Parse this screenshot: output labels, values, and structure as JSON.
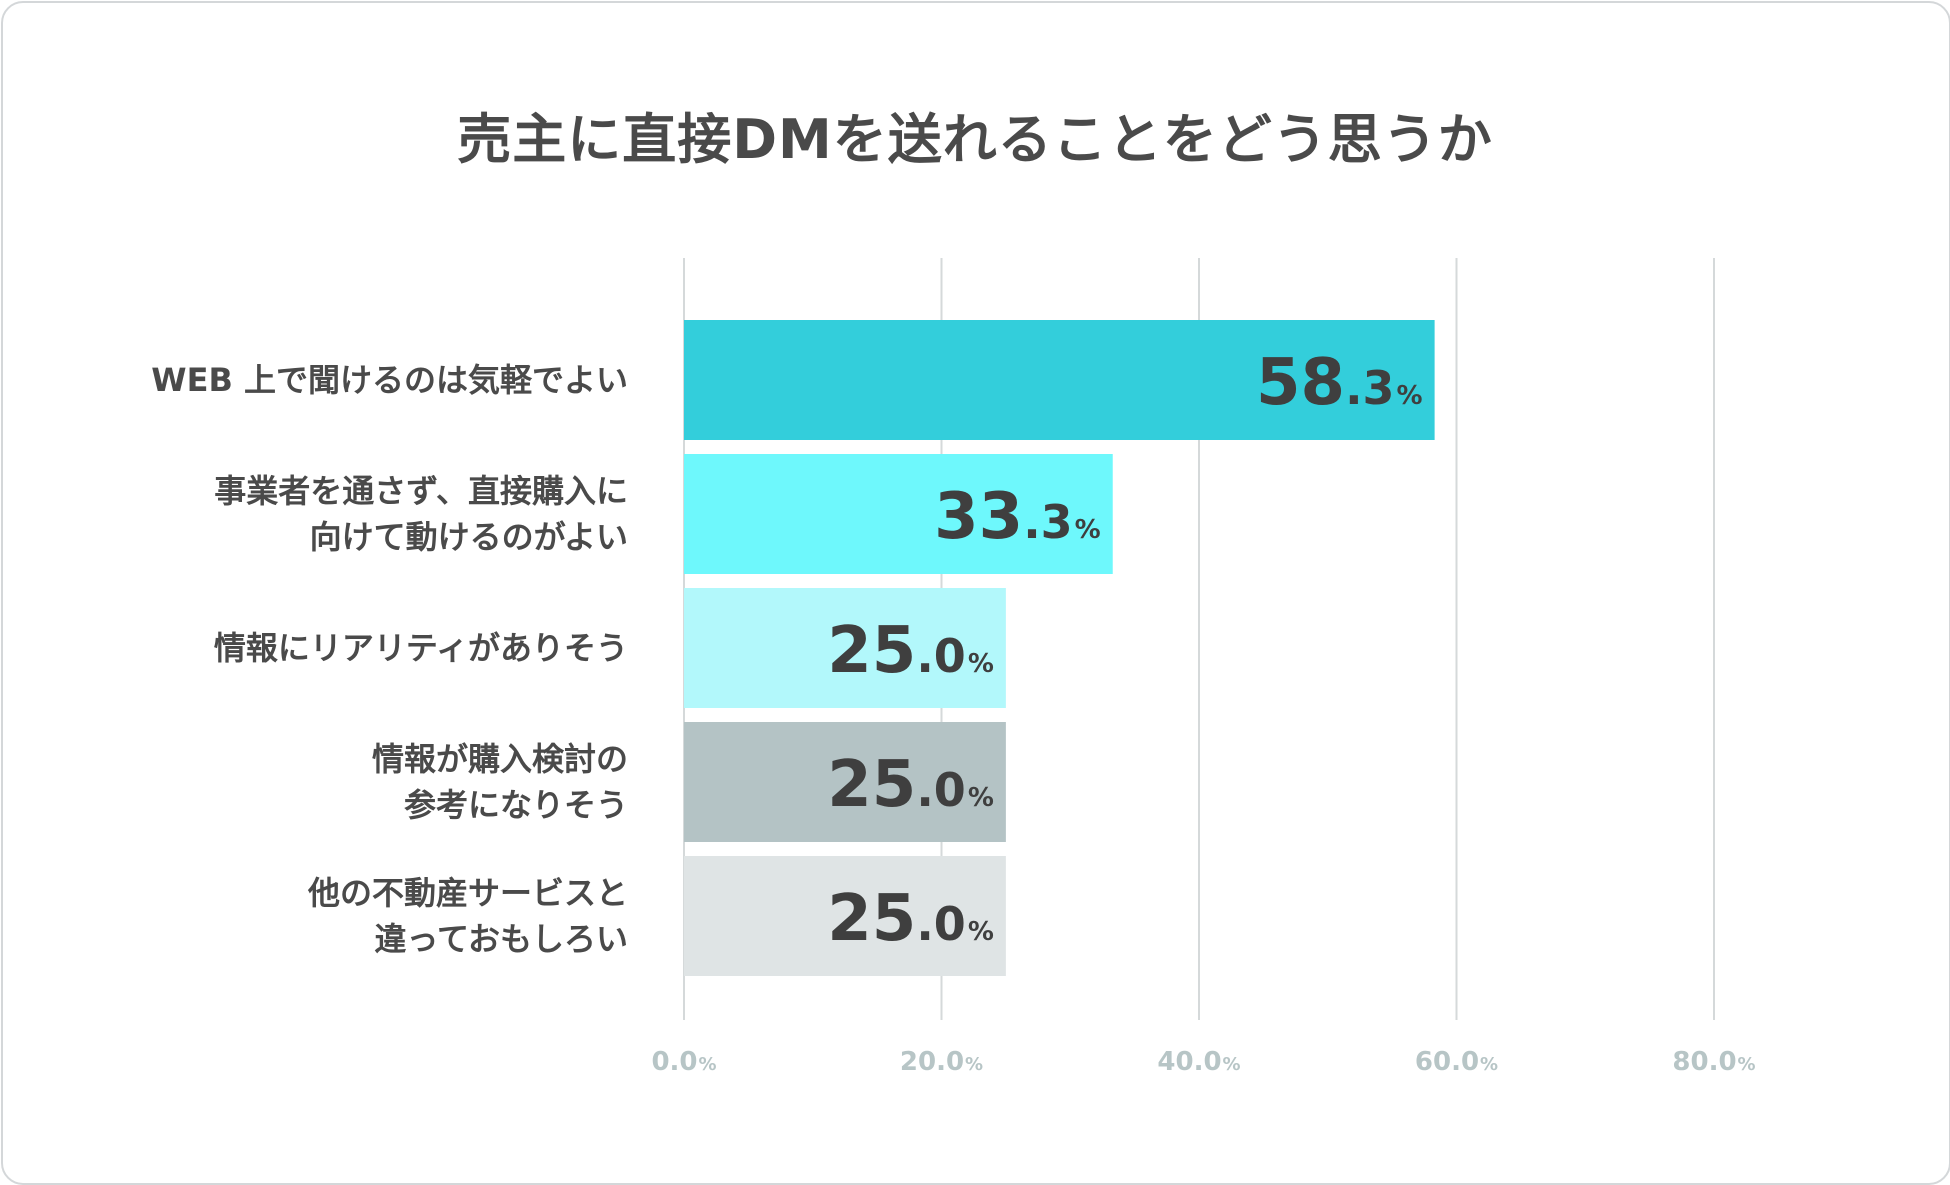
{
  "chart_data": {
    "type": "bar",
    "orientation": "horizontal",
    "title": "売主に直接DMを送れることをどう思うか",
    "categories": [
      [
        "WEB 上で聞けるのは気軽でよい"
      ],
      [
        "事業者を通さず、直接購入に",
        "向けて動けるのがよい"
      ],
      [
        "情報にリアリティがありそう"
      ],
      [
        "情報が購入検討の",
        "参考になりそう"
      ],
      [
        "他の不動産サービスと",
        "違っておもしろい"
      ]
    ],
    "values": [
      58.3,
      33.3,
      25.0,
      25.0,
      25.0
    ],
    "value_labels": [
      "58.3%",
      "33.3%",
      "25.0%",
      "25.0%",
      "25.0%"
    ],
    "bar_colors": [
      "#33cedb",
      "#6ef8fc",
      "#b2f8fb",
      "#b4c3c5",
      "#dfe4e5"
    ],
    "xlim": [
      0,
      80
    ],
    "xticks": [
      0,
      20,
      40,
      60,
      80
    ],
    "xtick_labels": [
      "0.0%",
      "20.0%",
      "40.0%",
      "60.0%",
      "80.0%"
    ],
    "grid": true,
    "legend": "none"
  }
}
